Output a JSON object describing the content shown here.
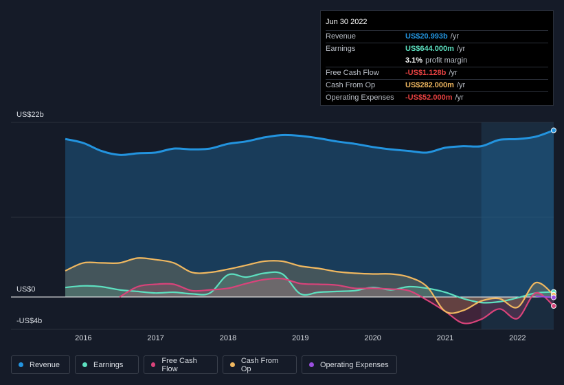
{
  "tooltip": {
    "date": "Jun 30 2022",
    "rows": [
      {
        "label": "Revenue",
        "value": "US$20.993b",
        "unit": "/yr",
        "color": "#2394df"
      },
      {
        "label": "Earnings",
        "value": "US$644.000m",
        "unit": "/yr",
        "color": "#5de0c0"
      },
      {
        "label": "",
        "value": "3.1%",
        "unit": "profit margin",
        "color": "#ffffff"
      },
      {
        "label": "Free Cash Flow",
        "value": "-US$1.128b",
        "unit": "/yr",
        "color": "#e64141"
      },
      {
        "label": "Cash From Op",
        "value": "US$282.000m",
        "unit": "/yr",
        "color": "#f0b860"
      },
      {
        "label": "Operating Expenses",
        "value": "-US$52.000m",
        "unit": "/yr",
        "color": "#e64141"
      }
    ]
  },
  "legend": [
    {
      "label": "Revenue",
      "color": "#2394df"
    },
    {
      "label": "Earnings",
      "color": "#5de0c0"
    },
    {
      "label": "Free Cash Flow",
      "color": "#d9437a"
    },
    {
      "label": "Cash From Op",
      "color": "#f0b860"
    },
    {
      "label": "Operating Expenses",
      "color": "#9b4fe0"
    }
  ],
  "chart_data": {
    "type": "area",
    "title": "",
    "xlabel": "",
    "ylabel": "",
    "y_axis_labels": [
      "US$22b",
      "US$0",
      "-US$4b"
    ],
    "ylim": [
      -4,
      22
    ],
    "xlim": [
      2015.0,
      2022.5
    ],
    "x_ticks": [
      2016,
      2017,
      2018,
      2019,
      2020,
      2021,
      2022
    ],
    "x_tick_labels": [
      "2016",
      "2017",
      "2018",
      "2019",
      "2020",
      "2021",
      "2022"
    ],
    "highlight_from": 2021.5,
    "series": [
      {
        "name": "Revenue",
        "color": "#2394df",
        "x": [
          2015.75,
          2016.0,
          2016.25,
          2016.5,
          2016.75,
          2017.0,
          2017.25,
          2017.5,
          2017.75,
          2018.0,
          2018.25,
          2018.5,
          2018.75,
          2019.0,
          2019.25,
          2019.5,
          2019.75,
          2020.0,
          2020.25,
          2020.5,
          2020.75,
          2021.0,
          2021.25,
          2021.5,
          2021.75,
          2022.0,
          2022.25,
          2022.5
        ],
        "values": [
          19.9,
          19.4,
          18.4,
          17.9,
          18.1,
          18.2,
          18.7,
          18.6,
          18.7,
          19.3,
          19.6,
          20.1,
          20.4,
          20.3,
          20.0,
          19.6,
          19.3,
          18.9,
          18.6,
          18.4,
          18.2,
          18.8,
          19.0,
          19.0,
          19.8,
          19.9,
          20.2,
          21.0
        ]
      },
      {
        "name": "Earnings",
        "color": "#5de0c0",
        "x": [
          2015.75,
          2016.0,
          2016.25,
          2016.5,
          2016.75,
          2017.0,
          2017.25,
          2017.5,
          2017.75,
          2018.0,
          2018.25,
          2018.5,
          2018.75,
          2019.0,
          2019.25,
          2019.5,
          2019.75,
          2020.0,
          2020.25,
          2020.5,
          2020.75,
          2021.0,
          2021.25,
          2021.5,
          2021.75,
          2022.0,
          2022.25,
          2022.5
        ],
        "values": [
          1.2,
          1.4,
          1.3,
          0.9,
          0.7,
          0.5,
          0.6,
          0.4,
          0.5,
          2.8,
          2.5,
          3.0,
          2.9,
          0.4,
          0.6,
          0.7,
          0.8,
          1.2,
          0.9,
          1.3,
          1.1,
          0.6,
          -0.2,
          -0.7,
          -0.6,
          -0.1,
          0.5,
          0.64
        ]
      },
      {
        "name": "Free Cash Flow",
        "color": "#d9437a",
        "x": [
          2016.5,
          2016.75,
          2017.0,
          2017.25,
          2017.5,
          2017.75,
          2018.0,
          2018.25,
          2018.5,
          2018.75,
          2019.0,
          2019.25,
          2019.5,
          2019.75,
          2020.0,
          2020.25,
          2020.5,
          2020.75,
          2021.0,
          2021.25,
          2021.5,
          2021.75,
          2022.0,
          2022.25,
          2022.5
        ],
        "values": [
          0.0,
          1.3,
          1.6,
          1.6,
          0.8,
          0.9,
          1.1,
          1.7,
          2.2,
          2.3,
          1.7,
          1.6,
          1.5,
          1.1,
          1.1,
          1.0,
          0.8,
          -0.4,
          -1.8,
          -3.3,
          -2.8,
          -1.5,
          -2.7,
          0.5,
          -1.128
        ]
      },
      {
        "name": "Cash From Op",
        "color": "#f0b860",
        "x": [
          2015.75,
          2016.0,
          2016.25,
          2016.5,
          2016.75,
          2017.0,
          2017.25,
          2017.5,
          2017.75,
          2018.0,
          2018.25,
          2018.5,
          2018.75,
          2019.0,
          2019.25,
          2019.5,
          2019.75,
          2020.0,
          2020.25,
          2020.5,
          2020.75,
          2021.0,
          2021.25,
          2021.5,
          2021.75,
          2022.0,
          2022.25,
          2022.5
        ],
        "values": [
          3.3,
          4.3,
          4.3,
          4.3,
          4.9,
          4.7,
          4.3,
          3.1,
          3.1,
          3.5,
          4.0,
          4.5,
          4.5,
          3.9,
          3.6,
          3.2,
          3.0,
          2.9,
          2.9,
          2.5,
          1.3,
          -1.8,
          -1.7,
          -0.5,
          -0.2,
          -1.3,
          1.8,
          0.28
        ]
      },
      {
        "name": "Operating Expenses",
        "color": "#9b4fe0",
        "x": [
          2022.25,
          2022.5
        ],
        "values": [
          0.1,
          -0.05
        ]
      }
    ]
  }
}
